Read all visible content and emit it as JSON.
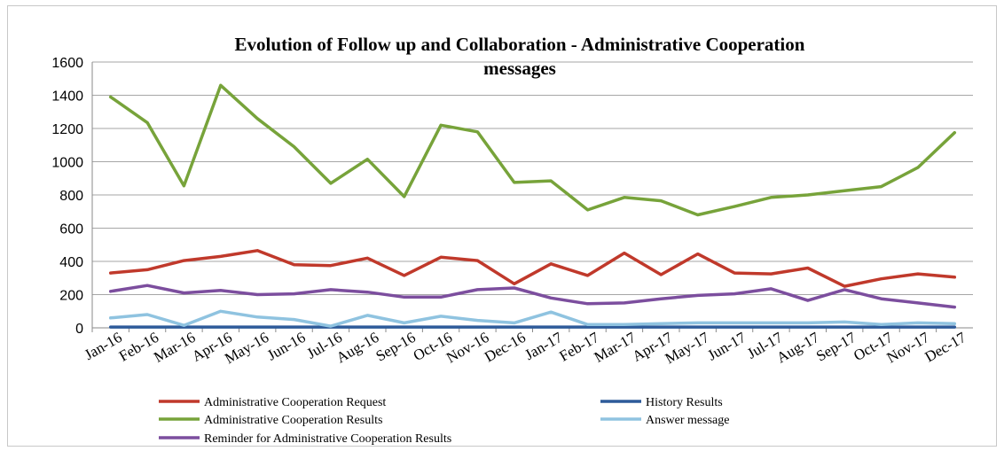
{
  "chart_data": {
    "type": "line",
    "title_lines": [
      "Evolution of Follow up and Collaboration  - Administrative Cooperation",
      "messages"
    ],
    "xlabel": "",
    "ylabel": "",
    "ylim": [
      0,
      1600
    ],
    "yticks": [
      "0",
      "200",
      "400",
      "600",
      "800",
      "1000",
      "1200",
      "1400",
      "1600"
    ],
    "grid": true,
    "legend_position": "bottom",
    "categories": [
      "Jan-16",
      "Feb-16",
      "Mar-16",
      "Apr-16",
      "May-16",
      "Jun-16",
      "Jul-16",
      "Aug-16",
      "Sep-16",
      "Oct-16",
      "Nov-16",
      "Dec-16",
      "Jan-17",
      "Feb-17",
      "Mar-17",
      "Apr-17",
      "May-17",
      "Jun-17",
      "Jul-17",
      "Aug-17",
      "Sep-17",
      "Oct-17",
      "Nov-17",
      "Dec-17"
    ],
    "series": [
      {
        "name": "Administrative Cooperation Request",
        "color": "#c0392b",
        "values": [
          330,
          350,
          405,
          430,
          465,
          380,
          375,
          420,
          315,
          425,
          405,
          265,
          385,
          315,
          450,
          320,
          445,
          330,
          325,
          360,
          250,
          295,
          325,
          305
        ]
      },
      {
        "name": "History Results",
        "color": "#2e5b9a",
        "values": [
          5,
          5,
          5,
          5,
          5,
          5,
          5,
          5,
          5,
          5,
          5,
          5,
          5,
          5,
          5,
          5,
          5,
          5,
          5,
          5,
          5,
          5,
          5,
          5
        ]
      },
      {
        "name": "Administrative Cooperation Results",
        "color": "#77a33a",
        "values": [
          1390,
          1235,
          855,
          1460,
          1260,
          1090,
          870,
          1015,
          790,
          1220,
          1180,
          875,
          885,
          710,
          785,
          765,
          680,
          730,
          785,
          800,
          825,
          850,
          965,
          1175
        ]
      },
      {
        "name": "Answer message",
        "color": "#8fc3e0",
        "values": [
          60,
          80,
          15,
          100,
          65,
          50,
          10,
          75,
          30,
          70,
          45,
          30,
          95,
          20,
          20,
          25,
          30,
          30,
          30,
          30,
          35,
          20,
          30,
          25
        ]
      },
      {
        "name": "Reminder for Administrative Cooperation Results",
        "color": "#7c4e9e",
        "values": [
          220,
          255,
          210,
          225,
          200,
          205,
          230,
          215,
          185,
          185,
          230,
          240,
          180,
          145,
          150,
          175,
          195,
          205,
          235,
          165,
          230,
          175,
          150,
          125
        ]
      }
    ]
  }
}
